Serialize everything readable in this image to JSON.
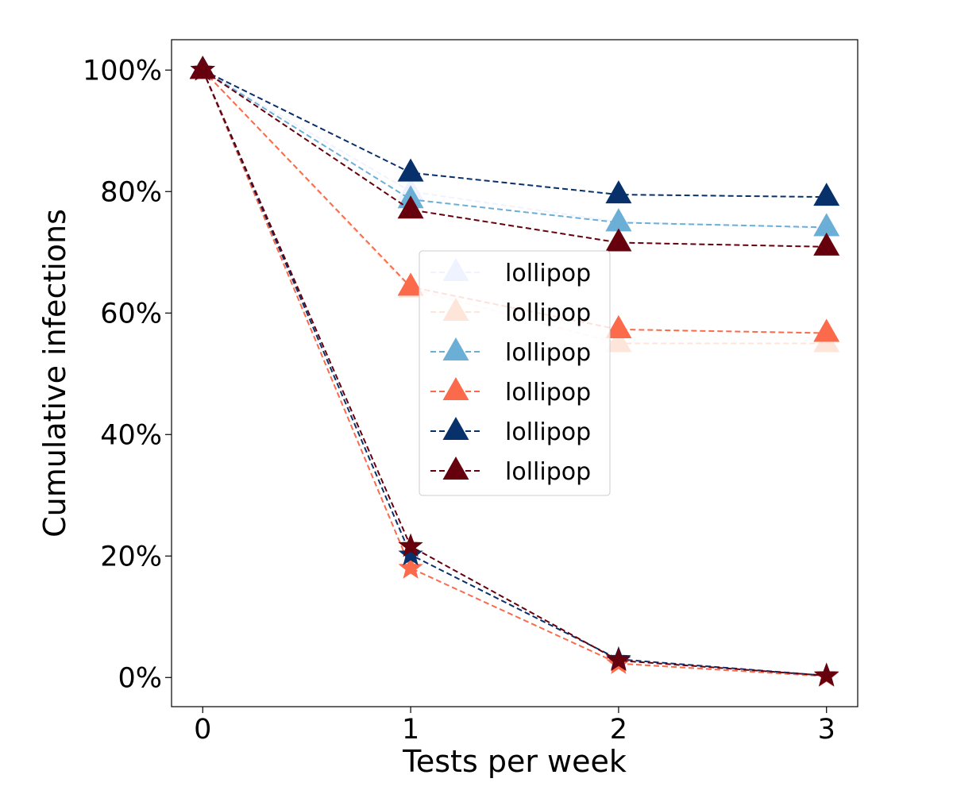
{
  "chart_data": {
    "type": "line",
    "title": "",
    "xlabel": "Tests per week",
    "ylabel": "Cumulative infections",
    "x": [
      0,
      1,
      2,
      3
    ],
    "xticks": [
      "0",
      "1",
      "2",
      "3"
    ],
    "xlim": [
      -0.15,
      3.15
    ],
    "ylim": [
      -4.8,
      105
    ],
    "yticks": [
      0,
      20,
      40,
      60,
      80,
      100
    ],
    "ytick_labels": [
      "0%",
      "20%",
      "40%",
      "60%",
      "80%",
      "100%"
    ],
    "legend_position": "center",
    "series": [
      {
        "name": "lollipop",
        "color": "#eff3ff",
        "marker": "triangle",
        "linestyle": "dashed",
        "in_legend": true,
        "values": [
          100,
          80,
          75,
          74
        ]
      },
      {
        "name": "lollipop",
        "color": "#fee5d9",
        "marker": "triangle",
        "linestyle": "dashed",
        "in_legend": true,
        "values": [
          100,
          64,
          55,
          55
        ]
      },
      {
        "name": "lollipop",
        "color": "#6baed6",
        "marker": "triangle",
        "linestyle": "dashed",
        "in_legend": true,
        "values": [
          100,
          78.7,
          74.9,
          74.1
        ]
      },
      {
        "name": "lollipop",
        "color": "#fb6a4a",
        "marker": "triangle",
        "linestyle": "dashed",
        "in_legend": true,
        "values": [
          100,
          64.3,
          57.3,
          56.7
        ]
      },
      {
        "name": "lollipop",
        "color": "#08306b",
        "marker": "triangle",
        "linestyle": "dashed",
        "in_legend": true,
        "values": [
          100,
          83.1,
          79.5,
          79.1
        ]
      },
      {
        "name": "lollipop",
        "color": "#67000d",
        "marker": "triangle",
        "linestyle": "dashed",
        "in_legend": true,
        "values": [
          100,
          77.0,
          71.6,
          70.9
        ]
      },
      {
        "name": "",
        "color": "#fb6a4a",
        "marker": "star",
        "linestyle": "dashed",
        "in_legend": false,
        "values": [
          100,
          18.0,
          2.3,
          0.2
        ]
      },
      {
        "name": "",
        "color": "#08306b",
        "marker": "star",
        "linestyle": "dashed",
        "in_legend": false,
        "values": [
          100,
          20.2,
          3.0,
          0.3
        ]
      },
      {
        "name": "",
        "color": "#67000d",
        "marker": "star",
        "linestyle": "dashed",
        "in_legend": false,
        "values": [
          100,
          21.6,
          2.8,
          0.3
        ]
      }
    ]
  }
}
